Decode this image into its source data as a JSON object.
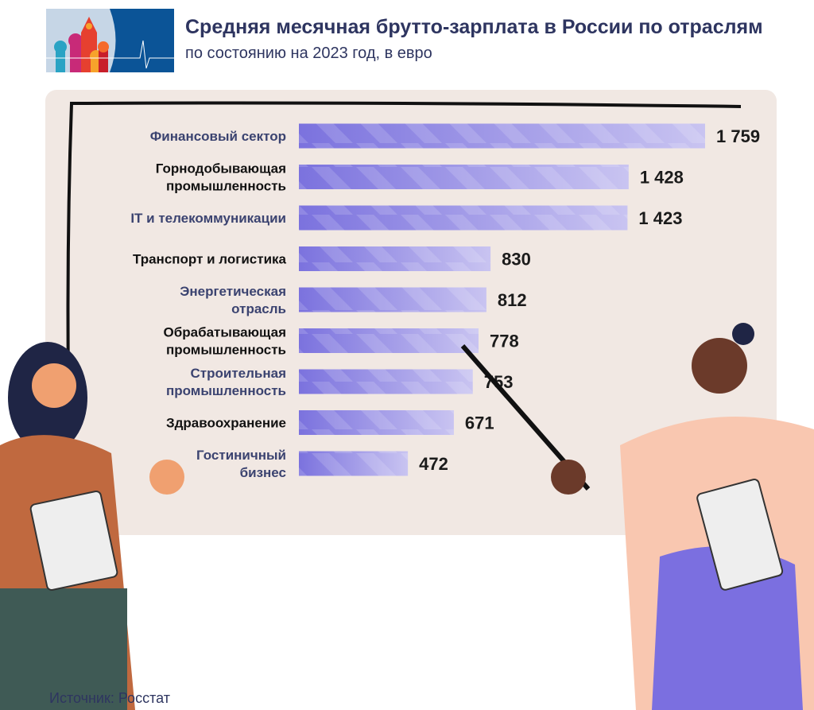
{
  "logo": {
    "description_icon": "moscow-domes-pulse-logo"
  },
  "chart_data": {
    "type": "bar",
    "orientation": "horizontal",
    "title": "Средняя месячная брутто-зарплата в России по отраслям",
    "subtitle": "по состоянию на 2023 год, в евро",
    "categories": [
      [
        "Финансовый сектор"
      ],
      [
        "Горнодобывающая",
        "промышленность"
      ],
      [
        "IT и телекоммуникации"
      ],
      [
        "Транспорт и логистика"
      ],
      [
        "Энергетическая",
        "отрасль"
      ],
      [
        "Обрабатывающая",
        "промышленность"
      ],
      [
        "Строительная",
        "промышленность"
      ],
      [
        "Здравоохранение"
      ],
      [
        "Гостиничный",
        "бизнес"
      ]
    ],
    "values": [
      1759,
      1428,
      1423,
      830,
      812,
      778,
      753,
      671,
      472
    ],
    "value_labels": [
      "1 759",
      "1 428",
      "1 423",
      "830",
      "812",
      "778",
      "753",
      "671",
      "472"
    ],
    "label_colors": [
      "#3b4370",
      "#111111",
      "#3b4370",
      "#111111",
      "#3b4370",
      "#111111",
      "#3b4370",
      "#111111",
      "#3b4370"
    ],
    "bar_color": "#7b72de",
    "xlim": [
      0,
      1759
    ],
    "grid": false
  },
  "source": "Источник: Росстат"
}
